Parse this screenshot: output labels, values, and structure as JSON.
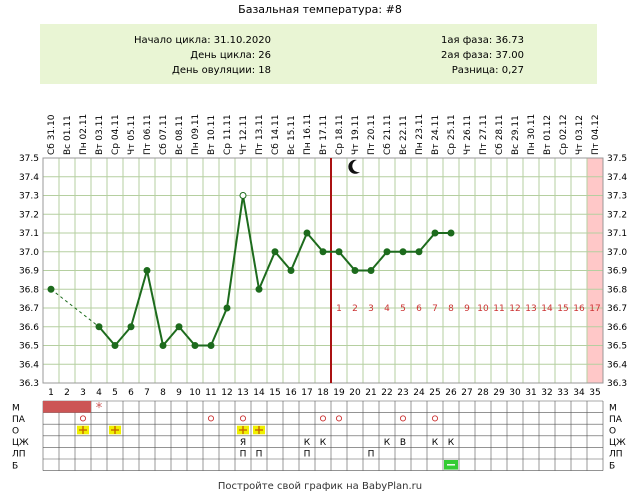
{
  "title": "Базальная температура: #8",
  "summary": {
    "cycle_start": "Начало цикла: 31.10.2020",
    "cycle_day": "День цикла: 26",
    "ovulation_day": "День овуляции: 18",
    "phase1": "1ая фаза: 36.73",
    "phase2": "2ая фаза: 37.00",
    "difference": "Разница: 0,27"
  },
  "footer": "Постройте свой график на BabyPlan.ru",
  "colors": {
    "grid": "#b5cfa0",
    "line": "#1d6b1d",
    "ovulation_line": "#aa1111",
    "summary_bg": "#e9f5d4",
    "highlight_day": "#ffc8c8",
    "period": "#cc5555",
    "sign_yellow": "#f0f000",
    "sign_green": "#33cc33",
    "phase_numbers": "#cc3333"
  },
  "icons": {
    "moon": "crescent-moon-icon",
    "period_star": "asterisk"
  },
  "chart_data": {
    "type": "line",
    "title": "Базальная температура: #8",
    "ylim": [
      36.3,
      37.5
    ],
    "yticks": [
      "37.5",
      "37.4",
      "37.3",
      "37.2",
      "37.1",
      "37.0",
      "36.9",
      "36.8",
      "36.7",
      "36.6",
      "36.5",
      "36.4",
      "36.3"
    ],
    "grid": true,
    "x": [
      1,
      2,
      3,
      4,
      5,
      6,
      7,
      8,
      9,
      10,
      11,
      12,
      13,
      14,
      15,
      16,
      17,
      18,
      19,
      20,
      21,
      22,
      23,
      24,
      25,
      26,
      27,
      28,
      29,
      30,
      31,
      32,
      33,
      34,
      35
    ],
    "dates": [
      "Сб 31.10",
      "Вс 01.11",
      "Пн 02.11",
      "Вт 03.11",
      "Ср 04.11",
      "Чт 05.11",
      "Пт 06.11",
      "Сб 07.11",
      "Вс 08.11",
      "Пн 09.11",
      "Вт 10.11",
      "Ср 11.11",
      "Чт 12.11",
      "Пт 13.11",
      "Сб 14.11",
      "Вс 15.11",
      "Пн 16.11",
      "Вт 17.11",
      "Ср 18.11",
      "Чт 19.11",
      "Пт 20.11",
      "Сб 21.11",
      "Вс 22.11",
      "Пн 23.11",
      "Вт 24.11",
      "Ср 25.11",
      "Чт 26.11",
      "Пт 27.11",
      "Сб 28.11",
      "Вс 29.11",
      "Пн 30.11",
      "Вт 01.12",
      "Ср 02.12",
      "Чт 03.12",
      "Пт 04.12"
    ],
    "temperatures": [
      36.8,
      null,
      null,
      36.6,
      36.5,
      36.6,
      36.9,
      36.5,
      36.6,
      36.5,
      36.5,
      36.7,
      37.3,
      36.8,
      37.0,
      36.9,
      37.1,
      37.0,
      37.0,
      36.9,
      36.9,
      37.0,
      37.0,
      37.0,
      37.1,
      37.1
    ],
    "dashed_segments": [
      [
        1,
        4
      ]
    ],
    "open_markers": [
      13
    ],
    "ovulation_day": 18,
    "moon_day": 20,
    "highlight_day": 35,
    "phase2_labels": [
      "1",
      "2",
      "3",
      "4",
      "5",
      "6",
      "7",
      "8",
      "9",
      "10",
      "11",
      "12",
      "13",
      "14",
      "15",
      "16",
      "17"
    ],
    "phase2_label_temp": 36.7,
    "table_rows": [
      {
        "label": "М",
        "marks": [
          {
            "day": 1,
            "type": "fill"
          },
          {
            "day": 2,
            "type": "fill"
          },
          {
            "day": 3,
            "type": "fill"
          },
          {
            "day": 4,
            "type": "star",
            "text": "*"
          }
        ]
      },
      {
        "label": "ПА",
        "marks": [
          {
            "day": 3,
            "type": "circle"
          },
          {
            "day": 11,
            "type": "circle"
          },
          {
            "day": 13,
            "type": "circle"
          },
          {
            "day": 18,
            "type": "circle"
          },
          {
            "day": 19,
            "type": "circle"
          },
          {
            "day": 23,
            "type": "circle"
          },
          {
            "day": 25,
            "type": "circle"
          }
        ]
      },
      {
        "label": "О",
        "marks": [
          {
            "day": 3,
            "type": "plus"
          },
          {
            "day": 5,
            "type": "plus"
          },
          {
            "day": 13,
            "type": "plus"
          },
          {
            "day": 14,
            "type": "plus"
          }
        ]
      },
      {
        "label": "ЦЖ",
        "marks": [
          {
            "day": 13,
            "type": "text",
            "text": "Я"
          },
          {
            "day": 17,
            "type": "text",
            "text": "К"
          },
          {
            "day": 18,
            "type": "text",
            "text": "К"
          },
          {
            "day": 22,
            "type": "text",
            "text": "К"
          },
          {
            "day": 23,
            "type": "text",
            "text": "В"
          },
          {
            "day": 25,
            "type": "text",
            "text": "К"
          },
          {
            "day": 26,
            "type": "text",
            "text": "К"
          }
        ]
      },
      {
        "label": "ЛП",
        "marks": [
          {
            "day": 13,
            "type": "text",
            "text": "П"
          },
          {
            "day": 14,
            "type": "text",
            "text": "П"
          },
          {
            "day": 17,
            "type": "text",
            "text": "П"
          },
          {
            "day": 21,
            "type": "text",
            "text": "П"
          }
        ]
      },
      {
        "label": "Б",
        "marks": [
          {
            "day": 26,
            "type": "minus"
          }
        ]
      }
    ]
  }
}
